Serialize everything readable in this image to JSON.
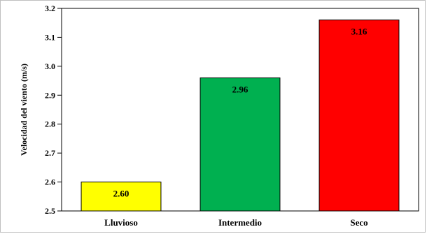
{
  "chart_data": {
    "type": "bar",
    "categories": [
      "Lluvioso",
      "Intermedio",
      "Seco"
    ],
    "values": [
      2.6,
      2.96,
      3.16
    ],
    "data_labels": [
      "2.60",
      "2.96",
      "3.16"
    ],
    "colors": [
      "#ffff00",
      "#00b050",
      "#ff0000"
    ],
    "ylabel": "Velocidad del viento (m/s)",
    "xlabel": "",
    "title": "",
    "ylim": [
      2.5,
      3.2
    ],
    "yticks": [
      2.5,
      2.6,
      2.7,
      2.8,
      2.9,
      3.0,
      3.1,
      3.2
    ],
    "ytick_labels": [
      "2.5",
      "2.6",
      "2.7",
      "2.8",
      "2.9",
      "3.0",
      "3.1",
      "3.2"
    ],
    "grid": false,
    "legend": "none"
  }
}
